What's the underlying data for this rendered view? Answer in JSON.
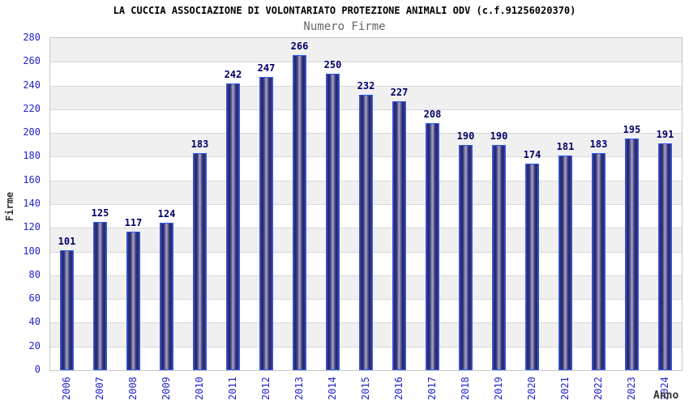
{
  "chart_data": {
    "type": "bar",
    "title": "LA CUCCIA ASSOCIAZIONE DI VOLONTARIATO PROTEZIONE ANIMALI ODV (c.f.91256020370)",
    "subtitle": "Numero Firme",
    "xlabel": "Anno",
    "ylabel": "Firme",
    "categories": [
      "2006",
      "2007",
      "2008",
      "2009",
      "2010",
      "2011",
      "2012",
      "2013",
      "2014",
      "2015",
      "2016",
      "2017",
      "2018",
      "2019",
      "2020",
      "2021",
      "2022",
      "2023",
      "2024"
    ],
    "values": [
      101,
      125,
      117,
      124,
      183,
      242,
      247,
      266,
      250,
      232,
      227,
      208,
      190,
      190,
      174,
      181,
      183,
      195,
      191
    ],
    "ylim": [
      0,
      280
    ],
    "ytick_step": 20,
    "grid": true,
    "legend": "none",
    "band_fill": "alternating horizontal bands",
    "colors": {
      "title": "#000000",
      "subtitle": "#666666",
      "tick_label": "#2323cc",
      "value_label": "#000066",
      "axis_title": "#333333",
      "band_gray": "#f0f0f0",
      "band_white": "#ffffff",
      "gridline": "#d8d8d8",
      "plot_border": "#c8c8c8",
      "bar_border": "#2e5bea",
      "bar_edge": "#4d4db0",
      "bar_dark": "#22226d",
      "bar_mid": "#3c3c80",
      "bar_light": "#a9a9c6"
    }
  }
}
